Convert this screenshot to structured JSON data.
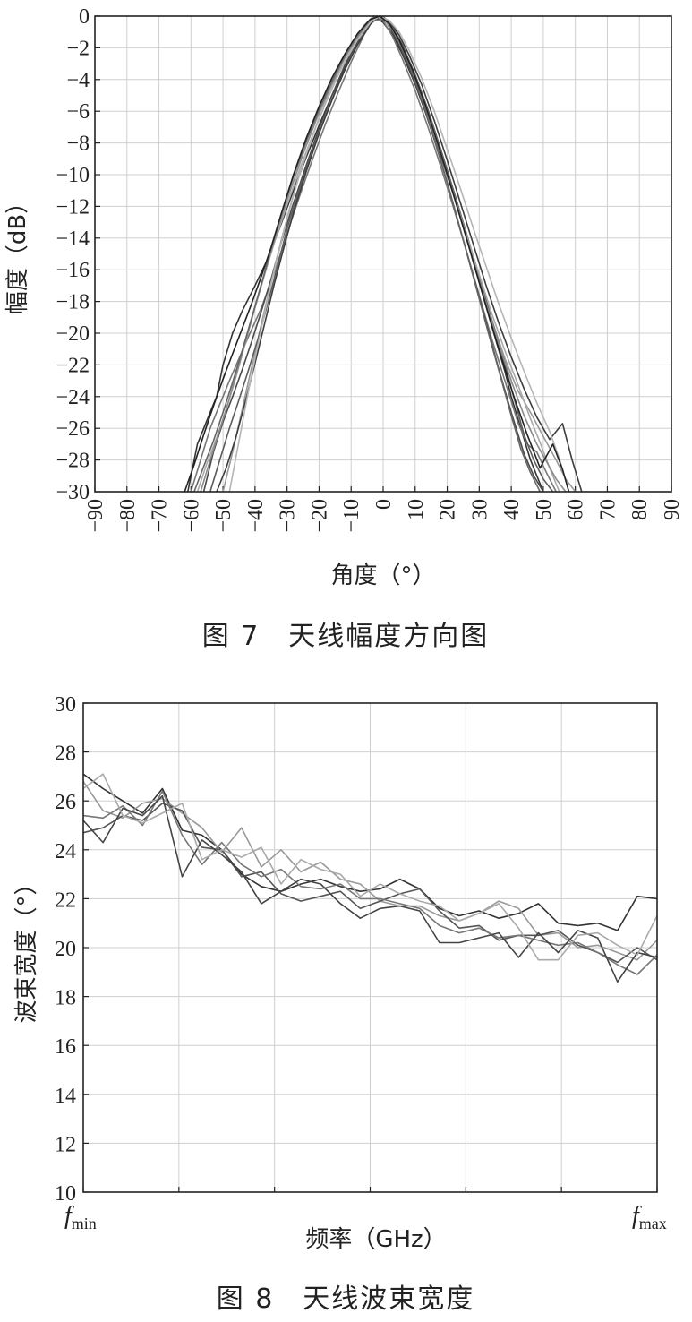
{
  "chart_data": [
    {
      "type": "line",
      "title": "",
      "xlabel": "角度（°）",
      "ylabel": "幅度（dB）",
      "caption": "图 7　天线幅度方向图",
      "xlim": [
        -90,
        90
      ],
      "ylim": [
        -30,
        0
      ],
      "xticks": [
        "−90",
        "−80",
        "−70",
        "−60",
        "−50",
        "−40",
        "−30",
        "−20",
        "−10",
        "0",
        "10",
        "20",
        "30",
        "40",
        "50",
        "60",
        "70",
        "80",
        "90"
      ],
      "yticks": [
        "0",
        "−2",
        "−4",
        "−6",
        "−8",
        "−10",
        "−12",
        "−14",
        "−16",
        "−18",
        "−20",
        "−22",
        "−24",
        "−26",
        "−28",
        "−30"
      ],
      "grid": true,
      "series": [
        {
          "color": "#333333",
          "x": [
            -61,
            -58,
            -55,
            -52,
            -50,
            -47,
            -44,
            -40,
            -36,
            -32,
            -28,
            -24,
            -20,
            -16,
            -12,
            -8,
            -5,
            -3,
            0,
            3,
            6,
            10,
            14,
            18,
            22,
            26,
            30,
            34,
            38,
            40,
            43,
            46,
            48,
            50
          ],
          "y": [
            -30,
            -27,
            -25.5,
            -24,
            -22,
            -20,
            -18.6,
            -17,
            -15.3,
            -13.2,
            -11,
            -8.9,
            -6.9,
            -5,
            -3.3,
            -1.6,
            -0.6,
            0,
            -0.4,
            -1.2,
            -2.4,
            -4.3,
            -6.5,
            -8.8,
            -11.3,
            -14,
            -16.8,
            -19.6,
            -22.4,
            -24,
            -26,
            -28,
            -29,
            -30
          ]
        },
        {
          "color": "#777777",
          "x": [
            -60,
            -57,
            -54,
            -51,
            -48,
            -45,
            -42,
            -38,
            -34,
            -30,
            -26,
            -22,
            -18,
            -14,
            -10,
            -6,
            -3,
            0,
            3,
            6,
            10,
            14,
            18,
            22,
            26,
            30,
            34,
            38,
            42,
            45,
            48,
            51,
            54
          ],
          "y": [
            -30,
            -28,
            -26,
            -24.5,
            -23,
            -21.6,
            -20.2,
            -18.4,
            -16.2,
            -13.7,
            -11.3,
            -9,
            -6.8,
            -4.8,
            -2.9,
            -1.2,
            -0.2,
            -0.3,
            -1.3,
            -2.7,
            -4.7,
            -7,
            -9.5,
            -12.1,
            -14.8,
            -17.6,
            -20.4,
            -23,
            -25.6,
            -27,
            -27.5,
            -28.8,
            -30
          ]
        },
        {
          "color": "#4a4a4a",
          "x": [
            -56,
            -53,
            -50,
            -47,
            -44,
            -41,
            -38,
            -35,
            -32,
            -28,
            -24,
            -20,
            -16,
            -12,
            -8,
            -5,
            -2,
            1,
            4,
            8,
            12,
            16,
            20,
            24,
            28,
            32,
            36,
            40,
            44,
            47,
            50
          ],
          "y": [
            -30,
            -27.5,
            -25.6,
            -24,
            -22.3,
            -20.5,
            -18.6,
            -16.6,
            -14.4,
            -11.8,
            -9.4,
            -7.1,
            -5,
            -3.1,
            -1.5,
            -0.5,
            0,
            -0.4,
            -1.4,
            -3.2,
            -5.3,
            -7.8,
            -10.5,
            -13.4,
            -16.3,
            -19.2,
            -22.2,
            -25,
            -27.6,
            -29,
            -30
          ]
        },
        {
          "color": "#999999",
          "x": [
            -50,
            -47,
            -44,
            -41,
            -38,
            -35,
            -32,
            -29,
            -26,
            -22,
            -18,
            -14,
            -10,
            -6,
            -3,
            0,
            3,
            6,
            10,
            14,
            18,
            22,
            26,
            30,
            34,
            38,
            42,
            46,
            50,
            54,
            57,
            60
          ],
          "y": [
            -30,
            -27.5,
            -24.8,
            -22.1,
            -19.4,
            -16.8,
            -14.3,
            -12,
            -9.9,
            -7.5,
            -5.4,
            -3.5,
            -1.8,
            -0.6,
            0,
            -0.2,
            -0.9,
            -2,
            -3.9,
            -6.1,
            -8.6,
            -11.2,
            -13.9,
            -16.6,
            -19.2,
            -21.6,
            -23.6,
            -25,
            -26.5,
            -28,
            -29.2,
            -30
          ]
        },
        {
          "color": "#5c5c5c",
          "x": [
            -54,
            -51,
            -48,
            -45,
            -42,
            -39,
            -36,
            -33,
            -30,
            -26,
            -22,
            -18,
            -14,
            -10,
            -6,
            -3,
            0,
            3,
            6,
            10,
            14,
            18,
            22,
            26,
            30,
            34,
            38,
            41,
            44,
            47,
            50,
            53
          ],
          "y": [
            -30,
            -28,
            -26,
            -24.2,
            -22.3,
            -20.3,
            -18.1,
            -15.8,
            -13.4,
            -10.8,
            -8.5,
            -6.3,
            -4.3,
            -2.5,
            -1,
            -0.2,
            0,
            -0.7,
            -1.8,
            -3.7,
            -5.9,
            -8.4,
            -11,
            -13.7,
            -16.4,
            -19.2,
            -22,
            -24.2,
            -26.4,
            -28,
            -29.2,
            -30
          ]
        },
        {
          "color": "#aaaaaa",
          "x": [
            -58,
            -55,
            -52,
            -49,
            -46,
            -43,
            -40,
            -37,
            -34,
            -30,
            -26,
            -22,
            -18,
            -14,
            -10,
            -6,
            -3,
            0,
            3,
            6,
            10,
            14,
            18,
            22,
            26,
            30,
            34,
            38,
            42,
            46,
            49,
            52,
            55
          ],
          "y": [
            -30,
            -28.2,
            -26.6,
            -24.8,
            -22.8,
            -20.6,
            -18.4,
            -16.3,
            -14.3,
            -11.9,
            -9.6,
            -7.5,
            -5.5,
            -3.7,
            -2.1,
            -0.8,
            -0.1,
            -0.1,
            -0.8,
            -2,
            -3.9,
            -6.2,
            -8.7,
            -11.2,
            -13.8,
            -16.3,
            -18.8,
            -21.1,
            -23.2,
            -25.4,
            -26.9,
            -28.5,
            -30
          ]
        },
        {
          "color": "#3d3d3d",
          "x": [
            -52,
            -49,
            -46,
            -43,
            -40,
            -37,
            -34,
            -31,
            -28,
            -24,
            -20,
            -16,
            -12,
            -8,
            -4,
            -1,
            2,
            5,
            8,
            12,
            16,
            20,
            24,
            28,
            32,
            36,
            40,
            44,
            48,
            52,
            56,
            59,
            62
          ],
          "y": [
            -30,
            -28.5,
            -26.6,
            -24.3,
            -21.9,
            -19.4,
            -16.9,
            -14.6,
            -12.4,
            -9.8,
            -7.4,
            -5.3,
            -3.4,
            -1.8,
            -0.5,
            0,
            -0.3,
            -1.2,
            -2.4,
            -4.3,
            -6.6,
            -9.1,
            -11.7,
            -14.3,
            -16.9,
            -19.3,
            -21.5,
            -23.5,
            -25.3,
            -26.7,
            -25.7,
            -28,
            -30
          ]
        },
        {
          "color": "#8a8a8a",
          "x": [
            -57,
            -54,
            -51,
            -48,
            -45,
            -42,
            -39,
            -36,
            -33,
            -29,
            -25,
            -21,
            -17,
            -13,
            -9,
            -5,
            -2,
            1,
            4,
            8,
            12,
            16,
            20,
            24,
            28,
            32,
            36,
            40,
            44,
            48,
            51,
            54,
            57
          ],
          "y": [
            -30,
            -28,
            -26.1,
            -24.1,
            -22,
            -19.8,
            -17.6,
            -15.5,
            -13.5,
            -11,
            -8.7,
            -6.6,
            -4.7,
            -3,
            -1.6,
            -0.5,
            0,
            -0.3,
            -1.1,
            -2.8,
            -4.9,
            -7.3,
            -9.9,
            -12.6,
            -15.3,
            -18,
            -20.6,
            -23,
            -25.2,
            -27,
            -28.1,
            -29.2,
            -30
          ]
        },
        {
          "color": "#666666",
          "x": [
            -59,
            -56,
            -53,
            -50,
            -47,
            -44,
            -41,
            -38,
            -35,
            -32,
            -28,
            -24,
            -20,
            -16,
            -12,
            -8,
            -4,
            -1,
            2,
            5,
            9,
            13,
            17,
            21,
            25,
            29,
            33,
            37,
            40,
            43,
            46,
            49
          ],
          "y": [
            -30,
            -28.4,
            -26.8,
            -25,
            -23.1,
            -21.1,
            -19,
            -16.9,
            -14.7,
            -12.6,
            -10.1,
            -7.9,
            -5.9,
            -4.1,
            -2.5,
            -1.2,
            -0.2,
            0,
            -0.5,
            -1.6,
            -3.5,
            -5.8,
            -8.4,
            -11.2,
            -14.1,
            -17.1,
            -20.1,
            -23,
            -25.2,
            -27.3,
            -28.8,
            -30
          ]
        },
        {
          "color": "#b5b5b5",
          "x": [
            -48,
            -45,
            -42,
            -39,
            -36,
            -33,
            -30,
            -27,
            -24,
            -20,
            -16,
            -12,
            -8,
            -4,
            -1,
            2,
            5,
            8,
            12,
            16,
            20,
            24,
            28,
            32,
            36,
            40,
            44,
            48,
            52,
            55,
            58
          ],
          "y": [
            -30,
            -26.8,
            -23.6,
            -20.6,
            -17.8,
            -15.2,
            -12.8,
            -10.6,
            -8.7,
            -6.4,
            -4.5,
            -2.9,
            -1.5,
            -0.4,
            0,
            -0.3,
            -1,
            -2.1,
            -3.9,
            -6,
            -8.4,
            -10.8,
            -13.3,
            -15.7,
            -18.1,
            -20.3,
            -22.4,
            -24.4,
            -26.2,
            -27.9,
            -30
          ]
        },
        {
          "color": "#222222",
          "x": [
            -62,
            -59,
            -56,
            -53,
            -50,
            -47,
            -44,
            -41,
            -38,
            -35,
            -32,
            -28,
            -24,
            -20,
            -16,
            -12,
            -8,
            -4,
            -1,
            2,
            5,
            9,
            13,
            17,
            21,
            25,
            29,
            33,
            37,
            41,
            45,
            49,
            53,
            56,
            58
          ],
          "y": [
            -30,
            -28.3,
            -26.4,
            -24.6,
            -22.9,
            -21.3,
            -19.7,
            -18.1,
            -16.4,
            -14.6,
            -12.6,
            -10,
            -7.7,
            -5.7,
            -3.9,
            -2.4,
            -1.1,
            -0.2,
            0,
            -0.5,
            -1.5,
            -3.3,
            -5.5,
            -8,
            -10.6,
            -13.3,
            -16.1,
            -18.9,
            -21.6,
            -24.1,
            -26.4,
            -28.5,
            -27,
            -28.6,
            -30
          ]
        }
      ]
    },
    {
      "type": "line",
      "title": "",
      "xlabel": "频率（GHz）",
      "ylabel": "波束宽度（°）",
      "caption": "图 8　天线波束宽度",
      "xticks": [
        "fmin",
        "fmax"
      ],
      "ylim": [
        10,
        30
      ],
      "yticks": [
        "30",
        "28",
        "26",
        "24",
        "22",
        "20",
        "18",
        "16",
        "14",
        "12",
        "10"
      ],
      "grid": true,
      "series": [
        {
          "color": "#333333",
          "y": [
            27.1,
            26.5,
            26,
            25.5,
            26.5,
            24.8,
            24.6,
            24,
            23,
            22.5,
            22.3,
            22.6,
            22.8,
            22.5,
            22.3,
            22.4,
            22.8,
            22.4,
            21.6,
            21.3,
            21.5,
            21.2,
            21.4,
            21.8,
            21,
            20.9,
            21,
            20.7,
            22.1,
            22
          ]
        },
        {
          "color": "#999999",
          "y": [
            26.8,
            25.6,
            25.3,
            25.9,
            26.1,
            25.5,
            24.9,
            23.9,
            24.9,
            23.3,
            24,
            23.1,
            23.5,
            22.8,
            22.6,
            21.9,
            21.7,
            21.7,
            21.3,
            21.1,
            21.4,
            21.9,
            21.6,
            20.5,
            20.6,
            20,
            20.1,
            19.8,
            19.5,
            20.3
          ]
        },
        {
          "color": "#555555",
          "y": [
            24.7,
            24.9,
            25.4,
            25.2,
            25.9,
            25.6,
            24.1,
            24,
            22.9,
            23.1,
            22.2,
            21.9,
            22.1,
            22.3,
            21.6,
            21.9,
            22.2,
            22.4,
            21.5,
            20.8,
            20.9,
            20.3,
            20.5,
            20.5,
            20.7,
            20.1,
            19.8,
            19.4,
            20,
            19.5
          ]
        },
        {
          "color": "#777777",
          "y": [
            25.4,
            25.3,
            25.8,
            25,
            26.4,
            24.6,
            23.4,
            24.3,
            23.4,
            22.9,
            23.2,
            22.5,
            22.4,
            22.6,
            22,
            22,
            21.8,
            21.6,
            20.9,
            20.6,
            20.8,
            20.4,
            20.5,
            20.3,
            20.1,
            20.2,
            19.8,
            19.3,
            18.9,
            19.7
          ]
        },
        {
          "color": "#444444",
          "y": [
            25.2,
            24.3,
            25.7,
            25.4,
            26.2,
            22.9,
            24.4,
            23.8,
            23.1,
            21.8,
            22.3,
            22.8,
            22.6,
            21.8,
            21.2,
            21.6,
            21.7,
            21.5,
            20.2,
            20.2,
            20.4,
            20.6,
            19.6,
            20.6,
            19.8,
            20.7,
            20.4,
            18.6,
            19.8,
            19.6
          ]
        },
        {
          "color": "#aaaaaa",
          "y": [
            26.5,
            27.1,
            25.4,
            25.1,
            25.5,
            25.9,
            23.6,
            24,
            23.7,
            24.1,
            22.6,
            23.6,
            23.2,
            23,
            22.1,
            22.6,
            22.2,
            21.9,
            21.7,
            21.1,
            21.4,
            21.8,
            20.8,
            19.5,
            19.5,
            20.5,
            20.6,
            20.1,
            19.7,
            21.3
          ]
        }
      ]
    }
  ]
}
